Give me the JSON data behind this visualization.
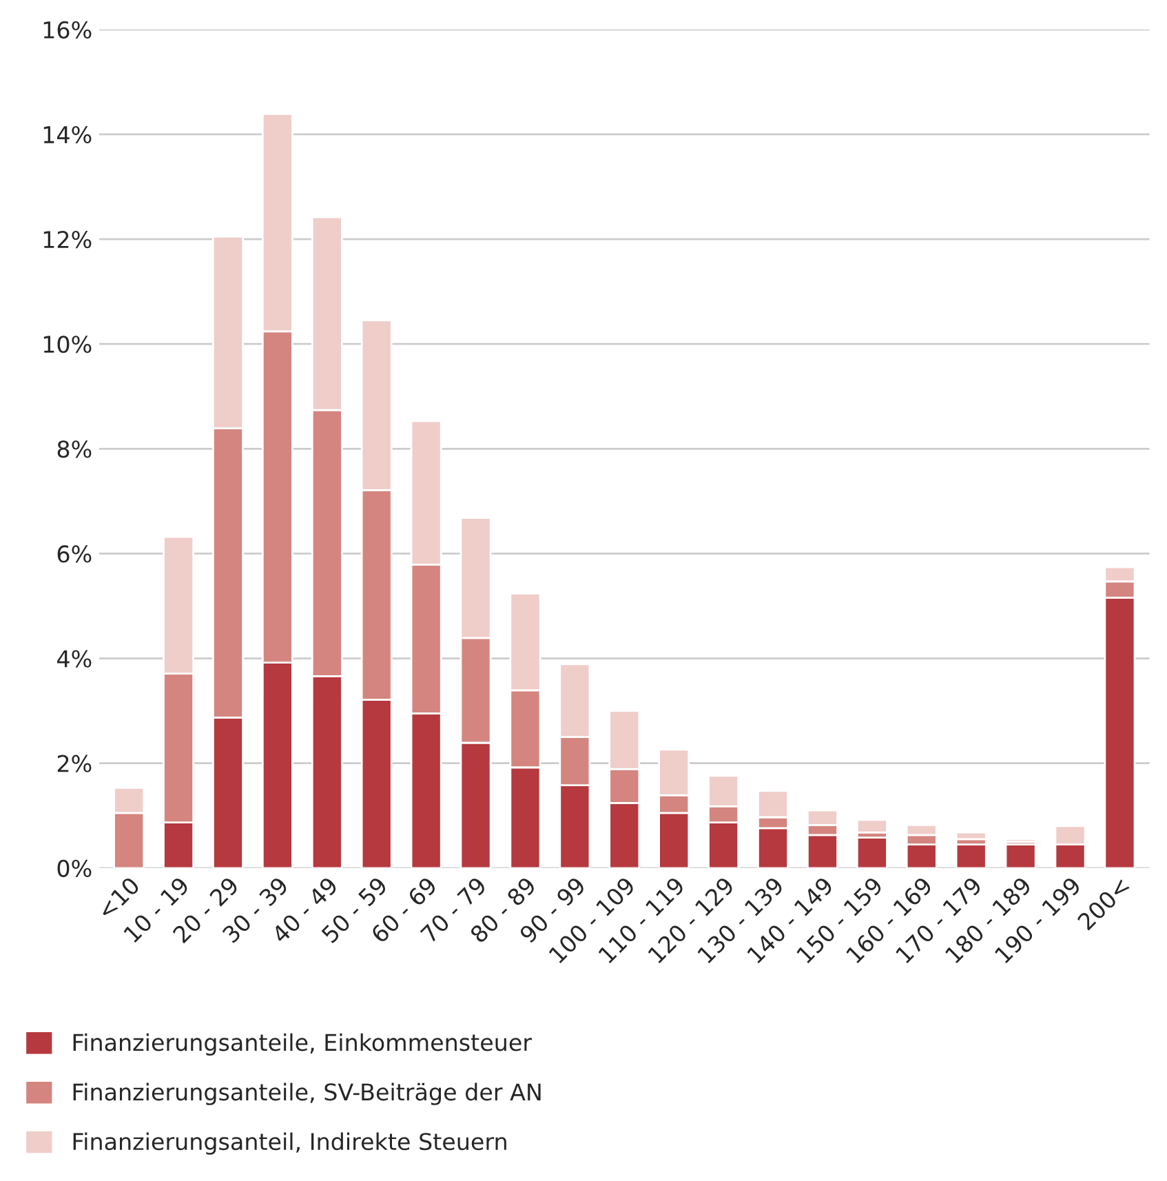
{
  "chart_data": {
    "type": "bar",
    "stacked": true,
    "categories": [
      "<10",
      "10 - 19",
      "20 - 29",
      "30 - 39",
      "40 - 49",
      "50 - 59",
      "60 - 69",
      "70 - 79",
      "80 - 89",
      "90 - 99",
      "100 - 109",
      "110 - 119",
      "120 - 129",
      "130 - 139",
      "140 - 149",
      "150 - 159",
      "160 - 169",
      "170 - 179",
      "180 - 189",
      "190 - 199",
      "200<"
    ],
    "series": [
      {
        "name": "Finanzierungsanteile, Einkommensteuer",
        "color": "#b5393e",
        "values": [
          0,
          0.87,
          2.87,
          3.92,
          3.66,
          3.21,
          2.95,
          2.39,
          1.92,
          1.58,
          1.24,
          1.05,
          0.87,
          0.76,
          0.63,
          0.58,
          0.45,
          0.45,
          0.45,
          0.45,
          5.16
        ]
      },
      {
        "name": "Finanzierungsanteile, SV-Beiträge der AN",
        "color": "#d4857f",
        "values": [
          1.05,
          2.84,
          5.52,
          6.32,
          5.08,
          4.0,
          2.84,
          2.0,
          1.47,
          0.92,
          0.65,
          0.34,
          0.31,
          0.21,
          0.19,
          0.1,
          0.18,
          0.1,
          0.05,
          null,
          0.31
        ]
      },
      {
        "name": "Finanzierungsanteil, Indirekte Steuern",
        "color": "#efcdc9",
        "values": [
          0.48,
          2.61,
          3.66,
          4.15,
          3.68,
          3.24,
          2.74,
          2.29,
          1.85,
          1.39,
          1.11,
          0.87,
          0.58,
          0.5,
          0.28,
          0.24,
          0.19,
          0.13,
          0.05,
          0.35,
          0.27
        ]
      }
    ],
    "ylim": [
      0,
      16
    ],
    "yticks": [
      {
        "value": 0,
        "label": "0%"
      },
      {
        "value": 2,
        "label": "2%"
      },
      {
        "value": 4,
        "label": "4%"
      },
      {
        "value": 6,
        "label": "6%"
      },
      {
        "value": 8,
        "label": "8%"
      },
      {
        "value": 10,
        "label": "10%"
      },
      {
        "value": 12,
        "label": "12%"
      },
      {
        "value": 14,
        "label": "14%"
      },
      {
        "value": 16,
        "label": "16%"
      }
    ],
    "grid": "y",
    "legend": "bottom left"
  }
}
